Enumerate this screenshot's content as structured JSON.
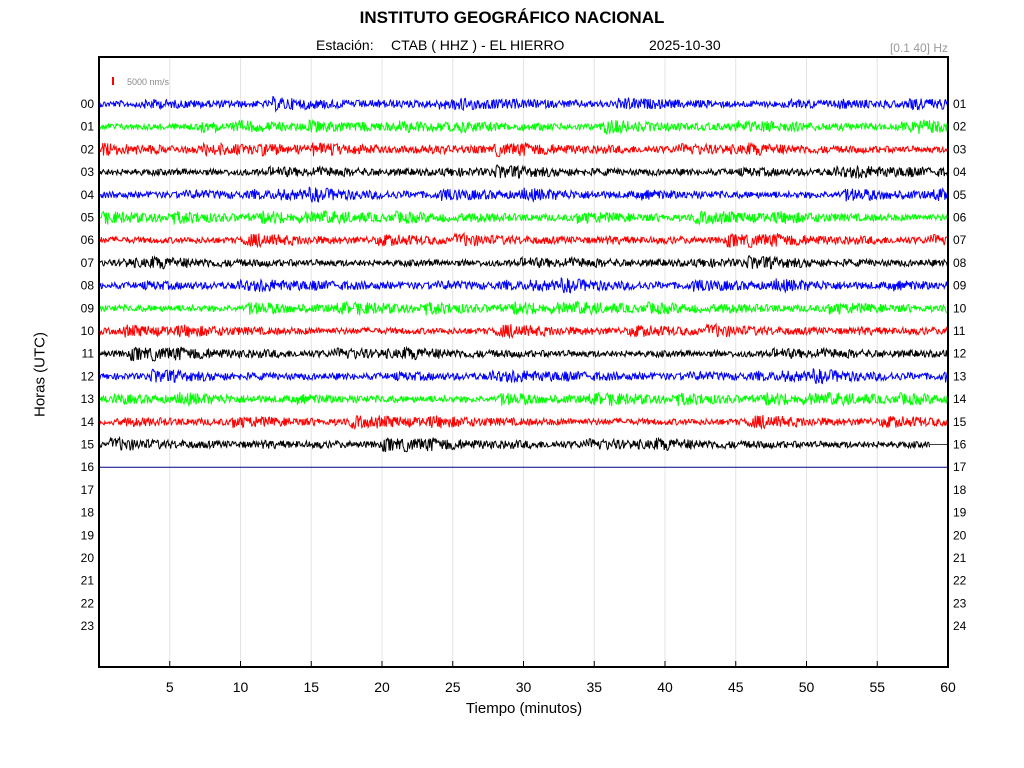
{
  "header": {
    "title": "INSTITUTO GEOGRÁFICO NACIONAL",
    "station_label": "Estación:",
    "station": "CTAB ( HHZ ) - EL HIERRO",
    "date": "2025-10-30",
    "filter": "[0.1 40] Hz"
  },
  "scale": {
    "label": "5000 nm/s",
    "color": "#ff0000"
  },
  "chart_data": {
    "type": "line",
    "title": "INSTITUTO GEOGRÁFICO NACIONAL",
    "xlabel": "Tiempo (minutos)",
    "ylabel": "Horas (UTC)",
    "xlim": [
      0,
      60
    ],
    "x_ticks": [
      5,
      10,
      15,
      20,
      25,
      30,
      35,
      40,
      45,
      50,
      55,
      60
    ],
    "grid": true,
    "left_hour_labels": [
      "00",
      "01",
      "02",
      "03",
      "04",
      "05",
      "06",
      "07",
      "08",
      "09",
      "10",
      "11",
      "12",
      "13",
      "14",
      "15",
      "16",
      "17",
      "18",
      "19",
      "20",
      "21",
      "22",
      "23"
    ],
    "right_hour_labels": [
      "01",
      "02",
      "03",
      "04",
      "05",
      "06",
      "07",
      "08",
      "09",
      "10",
      "11",
      "12",
      "13",
      "14",
      "15",
      "16",
      "17",
      "18",
      "19",
      "20",
      "21",
      "22",
      "23",
      "24"
    ],
    "trace_colors": [
      "#0000ff",
      "#00ff00",
      "#ff0000",
      "#000000"
    ],
    "series": [
      {
        "hour": "00",
        "end_minute": 60,
        "color": "#0000ff"
      },
      {
        "hour": "01",
        "end_minute": 60,
        "color": "#00ff00"
      },
      {
        "hour": "02",
        "end_minute": 60,
        "color": "#ff0000"
      },
      {
        "hour": "03",
        "end_minute": 60,
        "color": "#000000"
      },
      {
        "hour": "04",
        "end_minute": 60,
        "color": "#0000ff"
      },
      {
        "hour": "05",
        "end_minute": 60,
        "color": "#00ff00"
      },
      {
        "hour": "06",
        "end_minute": 60,
        "color": "#ff0000"
      },
      {
        "hour": "07",
        "end_minute": 60,
        "color": "#000000"
      },
      {
        "hour": "08",
        "end_minute": 60,
        "color": "#0000ff"
      },
      {
        "hour": "09",
        "end_minute": 60,
        "color": "#00ff00"
      },
      {
        "hour": "10",
        "end_minute": 60,
        "color": "#ff0000"
      },
      {
        "hour": "11",
        "end_minute": 60,
        "color": "#000000"
      },
      {
        "hour": "12",
        "end_minute": 60,
        "color": "#0000ff"
      },
      {
        "hour": "13",
        "end_minute": 60,
        "color": "#00ff00"
      },
      {
        "hour": "14",
        "end_minute": 60,
        "color": "#ff0000"
      },
      {
        "hour": "15",
        "end_minute": 58.7,
        "color": "#000000"
      }
    ],
    "current_time_marker_hour": 16,
    "current_time_marker_color": "#00008b"
  }
}
